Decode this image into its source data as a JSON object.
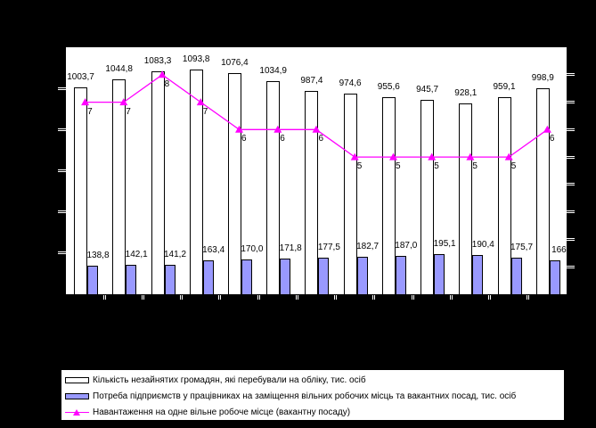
{
  "colors": {
    "background": "#000000",
    "plot_background": "#FFFFFF",
    "axis": "#000000",
    "bar_unemployed": "#FFFFFF",
    "bar_demand": "#9999FF",
    "load_line": "#FF00FF"
  },
  "chart_data": {
    "type": "bar",
    "subtype": "combo-bar-line",
    "title": "",
    "xlabel": "",
    "ylabel": "",
    "n_categories": 13,
    "categories": [
      "",
      "",
      "",
      "",
      "",
      "",
      "",
      "",
      "",
      "",
      "",
      "",
      ""
    ],
    "x_tick_labels_visible": false,
    "grid": false,
    "legend_position": "bottom",
    "left_axis": {
      "min": 0,
      "max": 1200,
      "tick_step": 200,
      "labels_visible": false
    },
    "right_axis": {
      "min": 0,
      "max": 9,
      "tick_step": 1,
      "labels_visible": false
    },
    "series": [
      {
        "name": "Кількість незайнятих громадян, які перебували на обліку, тис. осіб",
        "type": "bar",
        "axis": "left",
        "color": "#FFFFFF",
        "values": [
          1003.7,
          1044.8,
          1083.3,
          1093.8,
          1076.4,
          1034.9,
          987.4,
          974.6,
          955.6,
          945.7,
          928.1,
          959.1,
          998.9
        ],
        "labels": [
          "1003,7",
          "1044,8",
          "1083,3",
          "1093,8",
          "1076,4",
          "1034,9",
          "987,4",
          "974,6",
          "955,6",
          "945,7",
          "928,1",
          "959,1",
          "998,9"
        ]
      },
      {
        "name": "Потреба підприємств у працівниках на заміщення вільних робочих місць та вакантних посад, тис. осіб",
        "type": "bar",
        "axis": "left",
        "color": "#9999FF",
        "values": [
          138.8,
          142.1,
          141.2,
          163.4,
          170.0,
          171.8,
          177.5,
          182.7,
          187.0,
          195.1,
          190.4,
          175.7,
          166
        ],
        "labels": [
          "138,8",
          "142,1",
          "141,2",
          "163,4",
          "170,0",
          "171,8",
          "177,5",
          "182,7",
          "187,0",
          "195,1",
          "190,4",
          "175,7",
          "166,"
        ]
      },
      {
        "name": "Навантаження на одне вільне робоче місце (вакантну посаду)",
        "type": "line",
        "axis": "right",
        "color": "#FF00FF",
        "marker": "triangle",
        "values": [
          7,
          7,
          8,
          7,
          6,
          6,
          6,
          5,
          5,
          5,
          5,
          5,
          6
        ],
        "labels": [
          "7",
          "7",
          "8",
          "7",
          "6",
          "6",
          "6",
          "5",
          "5",
          "5",
          "5",
          "5",
          "6"
        ]
      }
    ]
  }
}
